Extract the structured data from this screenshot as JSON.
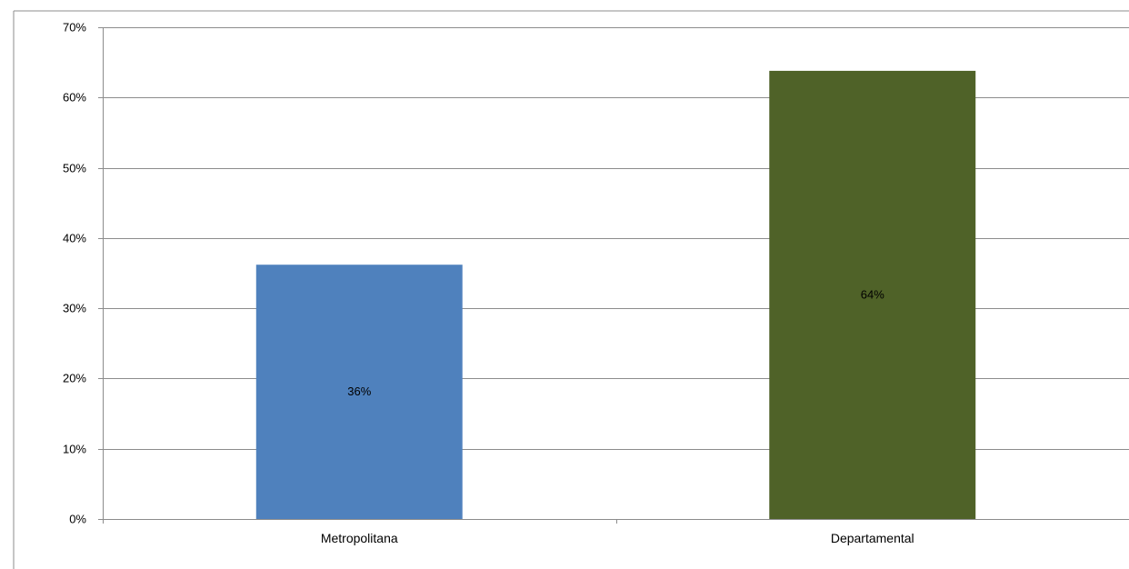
{
  "chart_data": {
    "type": "bar",
    "title": "",
    "xlabel": "",
    "ylabel": "",
    "categories": [
      "Metropolitana",
      "Departamental"
    ],
    "values": [
      36.2,
      63.8
    ],
    "data_labels": [
      "36%",
      "64%"
    ],
    "colors": [
      "#4f81bd",
      "#4f6228"
    ],
    "ylim": [
      0,
      70
    ],
    "yticks": [
      0,
      10,
      20,
      30,
      40,
      50,
      60,
      70
    ],
    "ytick_labels": [
      "0%",
      "10%",
      "20%",
      "30%",
      "40%",
      "50%",
      "60%",
      "70%"
    ],
    "grid": true,
    "legend": "none"
  }
}
